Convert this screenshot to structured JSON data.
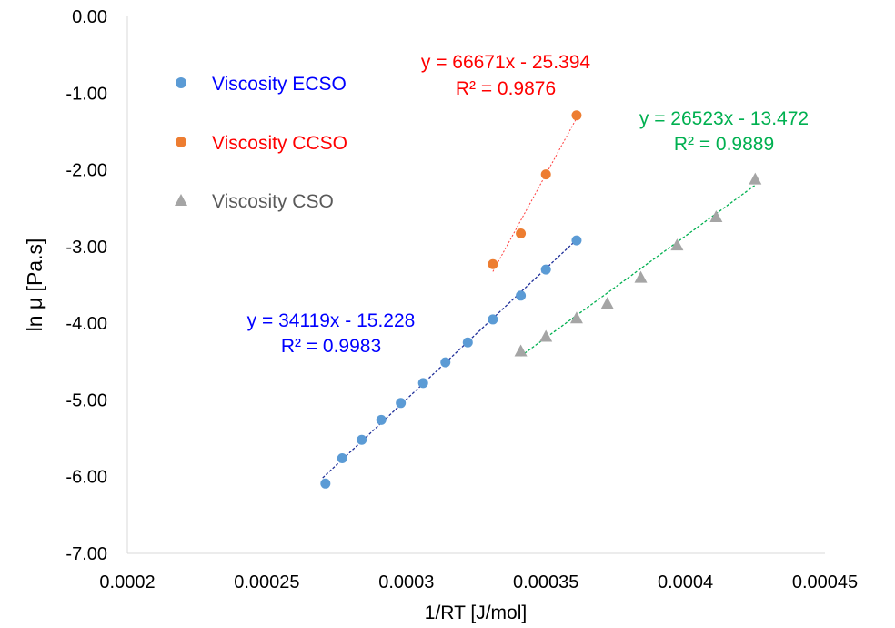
{
  "chart_data": {
    "type": "scatter",
    "title": "",
    "xlabel": "1/RT [J/mol]",
    "ylabel": "ln μ [Pa.s]",
    "xlim": [
      0.0002,
      0.00045
    ],
    "ylim": [
      -7,
      0
    ],
    "x_ticks": [
      "0.0002",
      "0.00025",
      "0.0003",
      "0.00035",
      "0.0004",
      "0.00045"
    ],
    "y_ticks": [
      "0.00",
      "-1.00",
      "-2.00",
      "-3.00",
      "-4.00",
      "-5.00",
      "-6.00",
      "-7.00"
    ],
    "gridlines": false,
    "legend_position": "top-left",
    "series": [
      {
        "name": "Viscosity ECSO",
        "marker": "circle",
        "color": "#5B9BD5",
        "label_color": "#0000FF",
        "trend_color": "#1F2F99",
        "x": [
          0.000271,
          0.000277,
          0.000284,
          0.000291,
          0.000298,
          0.000306,
          0.000314,
          0.000322,
          0.000331,
          0.000341,
          0.00035,
          0.000361
        ],
        "y": [
          -6.09,
          -5.76,
          -5.52,
          -5.26,
          -5.04,
          -4.78,
          -4.51,
          -4.25,
          -3.95,
          -3.64,
          -3.3,
          -2.92
        ],
        "trendline": {
          "equation": "y = 34119x - 15.228",
          "r2": "R² = 0.9983",
          "slope": 34119,
          "intercept": -15.228,
          "x_range": [
            0.00027,
            0.000362
          ]
        }
      },
      {
        "name": "Viscosity CCSO",
        "marker": "circle",
        "color": "#ED7D31",
        "label_color": "#FF0000",
        "trend_color": "#FF3B3B",
        "x": [
          0.000331,
          0.000341,
          0.00035,
          0.000361
        ],
        "y": [
          -3.23,
          -2.83,
          -2.06,
          -1.29
        ],
        "trendline": {
          "equation": "y = 66671x - 25.394",
          "r2": "R² = 0.9876",
          "slope": 66671,
          "intercept": -25.394,
          "x_range": [
            0.000331,
            0.000361
          ]
        }
      },
      {
        "name": "Viscosity CSO",
        "marker": "triangle",
        "color": "#A5A5A5",
        "label_color": "#00B050",
        "trend_color": "#00B050",
        "x": [
          0.000341,
          0.00035,
          0.000361,
          0.000372,
          0.000384,
          0.000397,
          0.000411,
          0.000425
        ],
        "y": [
          -4.36,
          -4.17,
          -3.93,
          -3.74,
          -3.4,
          -2.98,
          -2.61,
          -2.12
        ],
        "trendline": {
          "equation": "y = 26523x - 13.472",
          "r2": "R² = 0.9889",
          "slope": 26523,
          "intercept": -13.472,
          "x_range": [
            0.000341,
            0.000425
          ]
        }
      }
    ]
  }
}
